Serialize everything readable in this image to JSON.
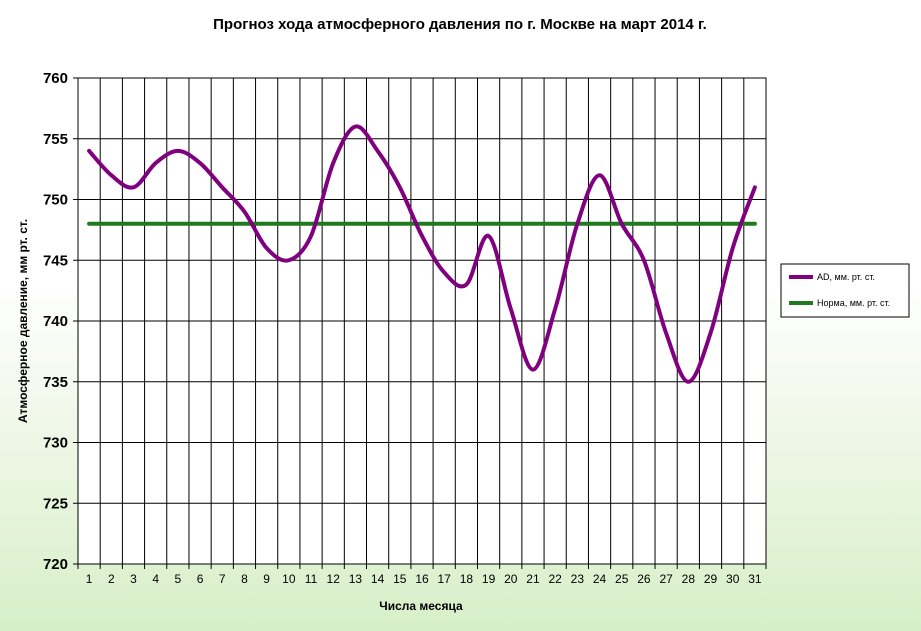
{
  "chart_data": {
    "type": "line",
    "title": "Прогноз хода атмосферного давления по г. Москве на март 2014 г.",
    "xlabel": "Числа месяца",
    "ylabel": "Атмосферное давление, мм рт. ст.",
    "x": [
      1,
      2,
      3,
      4,
      5,
      6,
      7,
      8,
      9,
      10,
      11,
      12,
      13,
      14,
      15,
      16,
      17,
      18,
      19,
      20,
      21,
      22,
      23,
      24,
      25,
      26,
      27,
      28,
      29,
      30,
      31
    ],
    "xlim": [
      0.5,
      31.5
    ],
    "ylim": [
      720,
      760
    ],
    "yticks": [
      720,
      725,
      730,
      735,
      740,
      745,
      750,
      755,
      760
    ],
    "grid": true,
    "legend_position": "right",
    "series": [
      {
        "name": "AD, мм. рт. ст.",
        "color": "#800080",
        "values": [
          754,
          752,
          751,
          753,
          754,
          753,
          751,
          749,
          746,
          745,
          747,
          753,
          756,
          754,
          751,
          747,
          744,
          743,
          747,
          741,
          736,
          741,
          748,
          752,
          748,
          745,
          739,
          735,
          739,
          746,
          751
        ]
      },
      {
        "name": "Норма, мм. рт. ст.",
        "color": "#1f7a1f",
        "values": [
          748,
          748,
          748,
          748,
          748,
          748,
          748,
          748,
          748,
          748,
          748,
          748,
          748,
          748,
          748,
          748,
          748,
          748,
          748,
          748,
          748,
          748,
          748,
          748,
          748,
          748,
          748,
          748,
          748,
          748,
          748
        ]
      }
    ]
  }
}
